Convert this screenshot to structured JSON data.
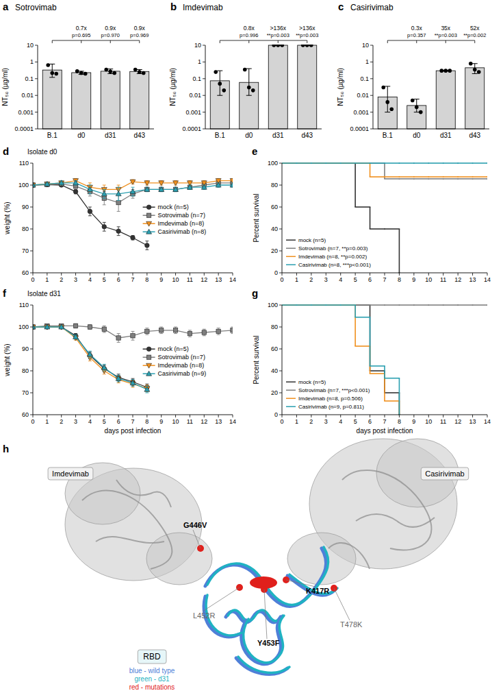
{
  "chart_data": [
    {
      "panel_label": "a",
      "type": "bar",
      "title": "Sotrovimab",
      "y_label": "NT₅₀ (µg/ml)",
      "categories": [
        "B.1",
        "d0",
        "d31",
        "d43"
      ],
      "values": [
        0.33,
        0.23,
        0.28,
        0.27
      ],
      "points": [
        [
          0.65,
          0.22,
          0.2
        ],
        [
          0.28,
          0.22,
          0.2
        ],
        [
          0.35,
          0.27,
          0.22
        ],
        [
          0.35,
          0.25,
          0.22
        ]
      ],
      "error_bars": [
        [
          0.12,
          0.75
        ],
        [
          0.18,
          0.28
        ],
        [
          0.2,
          0.38
        ],
        [
          0.2,
          0.35
        ]
      ],
      "color": "#d4d4d4",
      "log": "y",
      "ylim": [
        0.0001,
        10
      ],
      "yticks": [
        0.0001,
        0.001,
        0.01,
        0.1,
        1,
        10
      ],
      "annotations": [
        {
          "category": "d0",
          "fold": "0.7x",
          "p": "p=0.695"
        },
        {
          "category": "d31",
          "fold": "0.9x",
          "p": "p=0.970"
        },
        {
          "category": "d43",
          "fold": "0.9x",
          "p": "p=0.969"
        }
      ]
    },
    {
      "panel_label": "b",
      "type": "bar",
      "title": "Imdevimab",
      "y_label": "NT₅₀ (µg/ml)",
      "categories": [
        "B.1",
        "d0",
        "d31",
        "d43"
      ],
      "values": [
        0.075,
        0.06,
        10,
        10
      ],
      "points": [
        [
          0.25,
          0.05,
          0.02
        ],
        [
          0.35,
          0.03,
          0.02
        ],
        [
          10,
          10,
          10
        ],
        [
          10,
          10,
          10
        ]
      ],
      "error_bars": [
        [
          0.01,
          0.3
        ],
        [
          0.01,
          0.4
        ],
        [
          10,
          10
        ],
        [
          10,
          10
        ]
      ],
      "color": "#d4d4d4",
      "log": "y",
      "ylim": [
        0.0001,
        10
      ],
      "yticks": [
        0.0001,
        0.001,
        0.01,
        0.1,
        1,
        10
      ],
      "annotations": [
        {
          "category": "d0",
          "fold": "0.8x",
          "p": "p=0.996"
        },
        {
          "category": "d31",
          "fold": ">136x",
          "p": "**p=0.003"
        },
        {
          "category": "d43",
          "fold": ">136x",
          "p": "**p=0.003"
        }
      ]
    },
    {
      "panel_label": "c",
      "type": "bar",
      "title": "Casirivimab",
      "y_label": "NT₅₀ (µg/ml)",
      "categories": [
        "B.1",
        "d0",
        "d31",
        "d43"
      ],
      "values": [
        0.008,
        0.0025,
        0.3,
        0.45
      ],
      "points": [
        [
          0.03,
          0.004,
          0.0015
        ],
        [
          0.005,
          0.002,
          0.001
        ],
        [
          0.3,
          0.3,
          0.3
        ],
        [
          0.8,
          0.35,
          0.25
        ]
      ],
      "error_bars": [
        [
          0.001,
          0.035
        ],
        [
          0.001,
          0.006
        ],
        [
          0.28,
          0.32
        ],
        [
          0.2,
          0.8
        ]
      ],
      "color": "#d4d4d4",
      "log": "y",
      "ylim": [
        0.0001,
        10
      ],
      "yticks": [
        0.0001,
        0.001,
        0.01,
        0.1,
        1,
        10
      ],
      "annotations": [
        {
          "category": "d0",
          "fold": "0.3x",
          "p": "p=0.357"
        },
        {
          "category": "d31",
          "fold": "35x",
          "p": "**p=0.003"
        },
        {
          "category": "d43",
          "fold": "52x",
          "p": "**p=0.002"
        }
      ]
    },
    {
      "panel_label": "d",
      "type": "line",
      "subtitle": "Isolate d0",
      "y_label": "weight (%)",
      "x": [
        0,
        1,
        2,
        3,
        4,
        5,
        6,
        7,
        8,
        9,
        10,
        11,
        12,
        13,
        14
      ],
      "xlim": [
        0,
        14
      ],
      "xticks": [
        0,
        1,
        2,
        3,
        4,
        5,
        6,
        7,
        8,
        9,
        10,
        11,
        12,
        13,
        14
      ],
      "ylim": [
        60,
        110
      ],
      "yticks": [
        60,
        70,
        80,
        90,
        100,
        110
      ],
      "legend": "center",
      "series": [
        {
          "name": "mock (n=5)",
          "color": "#333333",
          "marker": "circle",
          "values": [
            100,
            100.2,
            100,
            97,
            88,
            81,
            79,
            76,
            72.5,
            null,
            null,
            null,
            null,
            null,
            null
          ],
          "errors": [
            0,
            0.3,
            0.5,
            1,
            2,
            2,
            2,
            1,
            2,
            null,
            null,
            null,
            null,
            null,
            null
          ]
        },
        {
          "name": "Sotrovimab (n=7)",
          "color": "#7f7f7f",
          "marker": "square",
          "values": [
            100,
            100.3,
            100.5,
            99.5,
            97,
            94,
            92,
            96,
            98,
            98,
            98,
            99,
            100,
            101,
            101
          ],
          "errors": [
            0,
            0.5,
            0.5,
            1,
            2,
            3,
            4,
            2,
            1,
            1,
            1,
            1,
            1,
            1,
            1
          ]
        },
        {
          "name": "Imdevimab (n=8)",
          "color": "#f0901e",
          "marker": "triangle-down",
          "values": [
            100,
            100.5,
            101,
            102,
            99,
            98,
            98,
            101.5,
            101,
            101,
            101,
            101,
            101,
            102,
            102
          ],
          "errors": [
            0,
            0.5,
            1,
            1,
            2,
            2,
            2,
            1,
            1,
            1,
            1,
            1,
            1,
            1,
            1
          ]
        },
        {
          "name": "Casirivimab (n=8)",
          "color": "#2a9fb0",
          "marker": "triangle-up",
          "values": [
            100,
            100.5,
            101,
            101,
            98,
            96,
            96,
            97,
            98,
            98,
            98,
            99,
            99,
            100,
            100
          ],
          "errors": [
            0,
            0.5,
            1,
            1,
            2,
            2,
            3,
            2,
            1,
            1,
            1,
            1,
            1,
            1,
            1
          ]
        }
      ]
    },
    {
      "panel_label": "e",
      "type": "step",
      "y_label": "Percent survival",
      "x": [
        0,
        1,
        2,
        3,
        4,
        5,
        6,
        7,
        8,
        9,
        10,
        11,
        12,
        13,
        14
      ],
      "xlim": [
        0,
        14
      ],
      "xticks": [
        0,
        1,
        2,
        3,
        4,
        5,
        6,
        7,
        8,
        9,
        10,
        11,
        12,
        13,
        14
      ],
      "ylim": [
        0,
        100
      ],
      "yticks": [
        0,
        20,
        40,
        60,
        80,
        100
      ],
      "legend": "lower left",
      "series": [
        {
          "name": "mock (n=5)",
          "color": "#333333",
          "values": [
            100,
            100,
            100,
            100,
            100,
            60,
            40,
            40,
            0,
            null,
            null,
            null,
            null,
            null,
            null
          ]
        },
        {
          "name": "Sotrovimab (n=7, **p=0.003)",
          "color": "#7f7f7f",
          "values": [
            100,
            100,
            100,
            100,
            100,
            100,
            100,
            85.7,
            85.7,
            85.7,
            85.7,
            85.7,
            85.7,
            85.7,
            85.7
          ]
        },
        {
          "name": "Imdevimab (n=8, **p=0.002)",
          "color": "#f0901e",
          "values": [
            100,
            100,
            100,
            100,
            100,
            100,
            87.5,
            87.5,
            87.5,
            87.5,
            87.5,
            87.5,
            87.5,
            87.5,
            87.5
          ]
        },
        {
          "name": "Casirivimab (n=8, ***p<0.001)",
          "color": "#2a9fb0",
          "values": [
            100,
            100,
            100,
            100,
            100,
            100,
            100,
            100,
            100,
            100,
            100,
            100,
            100,
            100,
            100
          ]
        }
      ]
    },
    {
      "panel_label": "f",
      "type": "line",
      "subtitle": "Isolate d31",
      "y_label": "weight (%)",
      "x_label": "days post infection",
      "x": [
        0,
        1,
        2,
        3,
        4,
        5,
        6,
        7,
        8,
        9,
        10,
        11,
        12,
        13,
        14
      ],
      "xlim": [
        0,
        14
      ],
      "xticks": [
        0,
        1,
        2,
        3,
        4,
        5,
        6,
        7,
        8,
        9,
        10,
        11,
        12,
        13,
        14
      ],
      "ylim": [
        60,
        110
      ],
      "yticks": [
        60,
        70,
        80,
        90,
        100,
        110
      ],
      "legend": "center",
      "series": [
        {
          "name": "mock (n=5)",
          "color": "#333333",
          "marker": "circle",
          "values": [
            100,
            100,
            100,
            96,
            87,
            81,
            77,
            75,
            72.5,
            null,
            null,
            null,
            null,
            null,
            null
          ],
          "errors": [
            0,
            0.5,
            0.5,
            1,
            1.5,
            1.5,
            1.5,
            1.5,
            1.5,
            null,
            null,
            null,
            null,
            null,
            null
          ]
        },
        {
          "name": "Sotrovimab (n=7)",
          "color": "#7f7f7f",
          "marker": "square",
          "values": [
            100,
            100.5,
            100.5,
            100.5,
            100,
            99,
            95,
            96,
            98,
            98.5,
            98.5,
            97,
            97.5,
            98,
            98.5
          ],
          "errors": [
            0,
            0.5,
            0.5,
            1,
            1,
            1.5,
            2,
            2,
            1.5,
            1.5,
            1.5,
            1.5,
            1.5,
            1.5,
            1.5
          ]
        },
        {
          "name": "Imdevimab (n=8)",
          "color": "#f0901e",
          "marker": "triangle-down",
          "values": [
            100,
            100,
            100,
            95,
            86,
            80,
            76,
            74,
            72,
            null,
            null,
            null,
            null,
            null,
            null
          ],
          "errors": [
            0,
            0.5,
            0.5,
            1,
            1.5,
            1.5,
            1.5,
            1.5,
            1.5,
            null,
            null,
            null,
            null,
            null,
            null
          ]
        },
        {
          "name": "Casirivimab (n=9)",
          "color": "#2a9fb0",
          "marker": "triangle-up",
          "values": [
            100,
            100,
            100,
            95.5,
            87.5,
            81.5,
            76.5,
            74.5,
            71.5,
            null,
            null,
            null,
            null,
            null,
            null
          ],
          "errors": [
            0,
            0.5,
            0.5,
            1,
            1.5,
            1.5,
            1.5,
            1.5,
            1.5,
            null,
            null,
            null,
            null,
            null,
            null
          ]
        }
      ]
    },
    {
      "panel_label": "g",
      "type": "step",
      "y_label": "Percent survival",
      "x_label": "days post infection",
      "x": [
        0,
        1,
        2,
        3,
        4,
        5,
        6,
        7,
        8,
        9,
        10,
        11,
        12,
        13,
        14
      ],
      "xlim": [
        0,
        14
      ],
      "xticks": [
        0,
        1,
        2,
        3,
        4,
        5,
        6,
        7,
        8,
        9,
        10,
        11,
        12,
        13,
        14
      ],
      "ylim": [
        0,
        100
      ],
      "yticks": [
        0,
        20,
        40,
        60,
        80,
        100
      ],
      "legend": "lower left",
      "series": [
        {
          "name": "mock (n=5)",
          "color": "#333333",
          "values": [
            100,
            100,
            100,
            100,
            100,
            100,
            40,
            20,
            0,
            null,
            null,
            null,
            null,
            null,
            null
          ]
        },
        {
          "name": "Sotrovimab (n=7, ***p<0.001)",
          "color": "#7f7f7f",
          "values": [
            100,
            100,
            100,
            100,
            100,
            100,
            100,
            100,
            100,
            100,
            100,
            100,
            100,
            100,
            100
          ]
        },
        {
          "name": "Imdevimab (n=8, p=0.506)",
          "color": "#f0901e",
          "values": [
            100,
            100,
            100,
            100,
            100,
            62.5,
            37.5,
            12.5,
            0,
            null,
            null,
            null,
            null,
            null,
            null
          ]
        },
        {
          "name": "Casirivimab (n=9, p=0.811)",
          "color": "#2a9fb0",
          "values": [
            100,
            100,
            100,
            100,
            100,
            88.9,
            44.4,
            33.3,
            0,
            null,
            null,
            null,
            null,
            null,
            null
          ]
        }
      ]
    }
  ],
  "structure": {
    "panel_label": "h",
    "antibodies": [
      "Imdevimab",
      "Casirivimab"
    ],
    "mutations": [
      {
        "label": "G446V",
        "bold": true
      },
      {
        "label": "T478K",
        "bold": false
      },
      {
        "label": "L452R",
        "bold": false
      },
      {
        "label": "K417R",
        "bold": true
      },
      {
        "label": "Y453F",
        "bold": true
      }
    ],
    "legend_title": "RBD",
    "legend": [
      {
        "text": "blue - wild type",
        "color": "#4f7fd8"
      },
      {
        "text": "green - d31",
        "color": "#1fb3c2"
      },
      {
        "text": "red - mutations",
        "color": "#e0201c"
      }
    ]
  }
}
